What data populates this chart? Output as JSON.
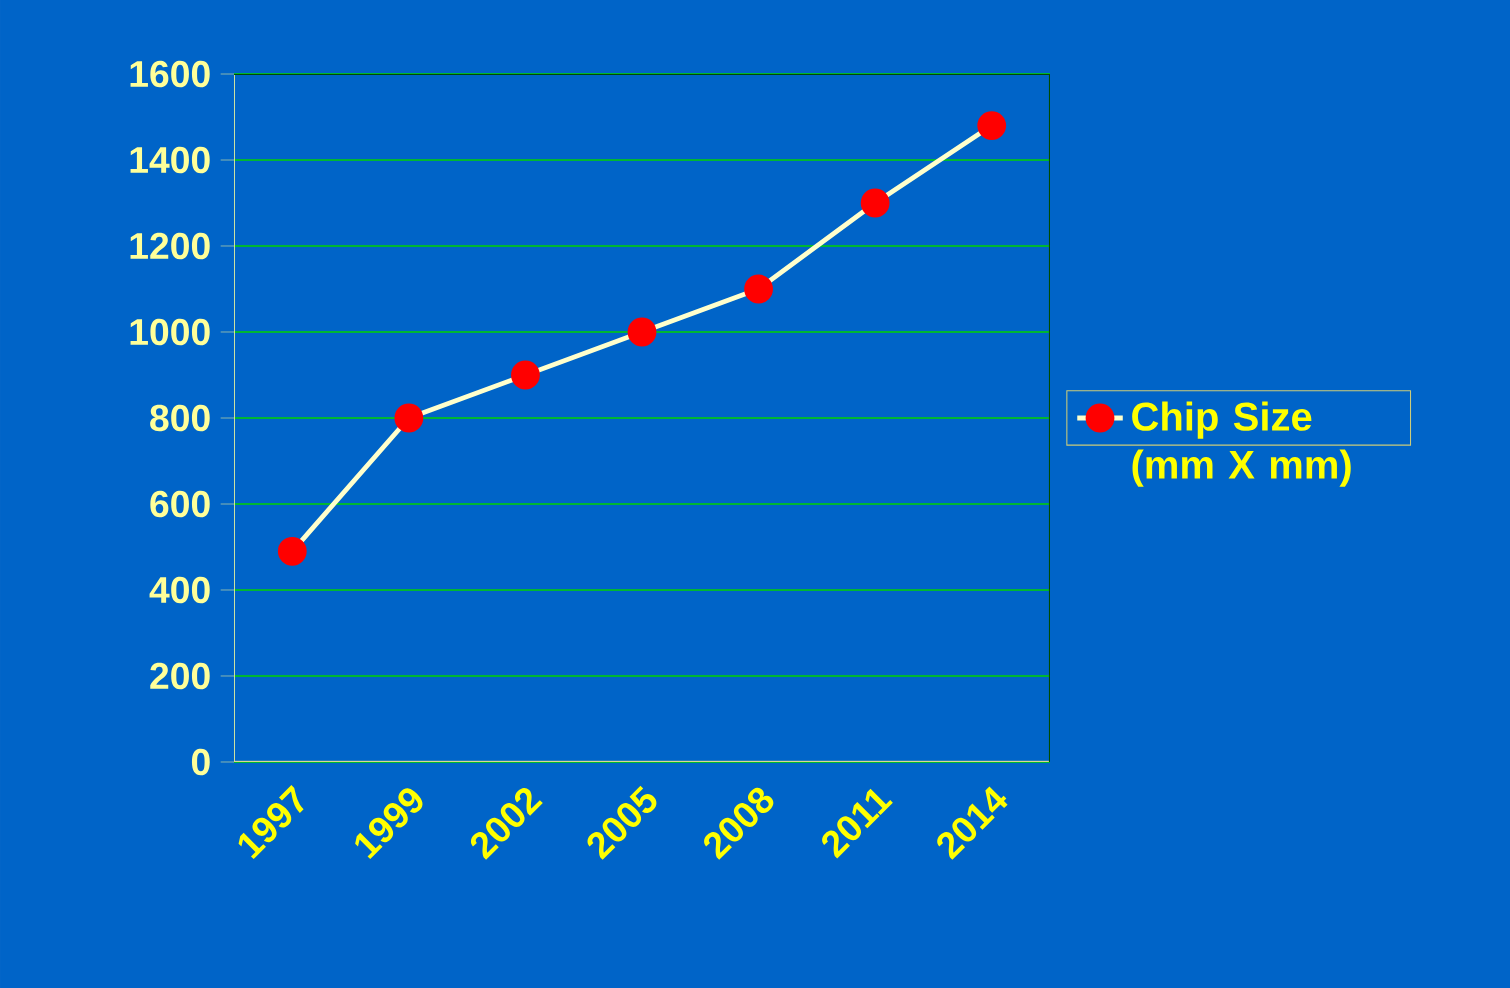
{
  "chart_data": {
    "type": "line",
    "categories": [
      "1997",
      "1999",
      "2002",
      "2005",
      "2008",
      "2011",
      "2014"
    ],
    "series": [
      {
        "name": "Chip Size (mm X mm)",
        "color": "#ffffcc",
        "values": [
          490,
          800,
          900,
          1000,
          1100,
          1300,
          1480
        ]
      }
    ],
    "ylim": [
      0,
      1600
    ],
    "yticks": [
      0,
      200,
      400,
      600,
      800,
      1000,
      1200,
      1400,
      1600
    ],
    "grid": "y",
    "legend": "right",
    "marker": "circle",
    "line_style": "solid"
  }
}
